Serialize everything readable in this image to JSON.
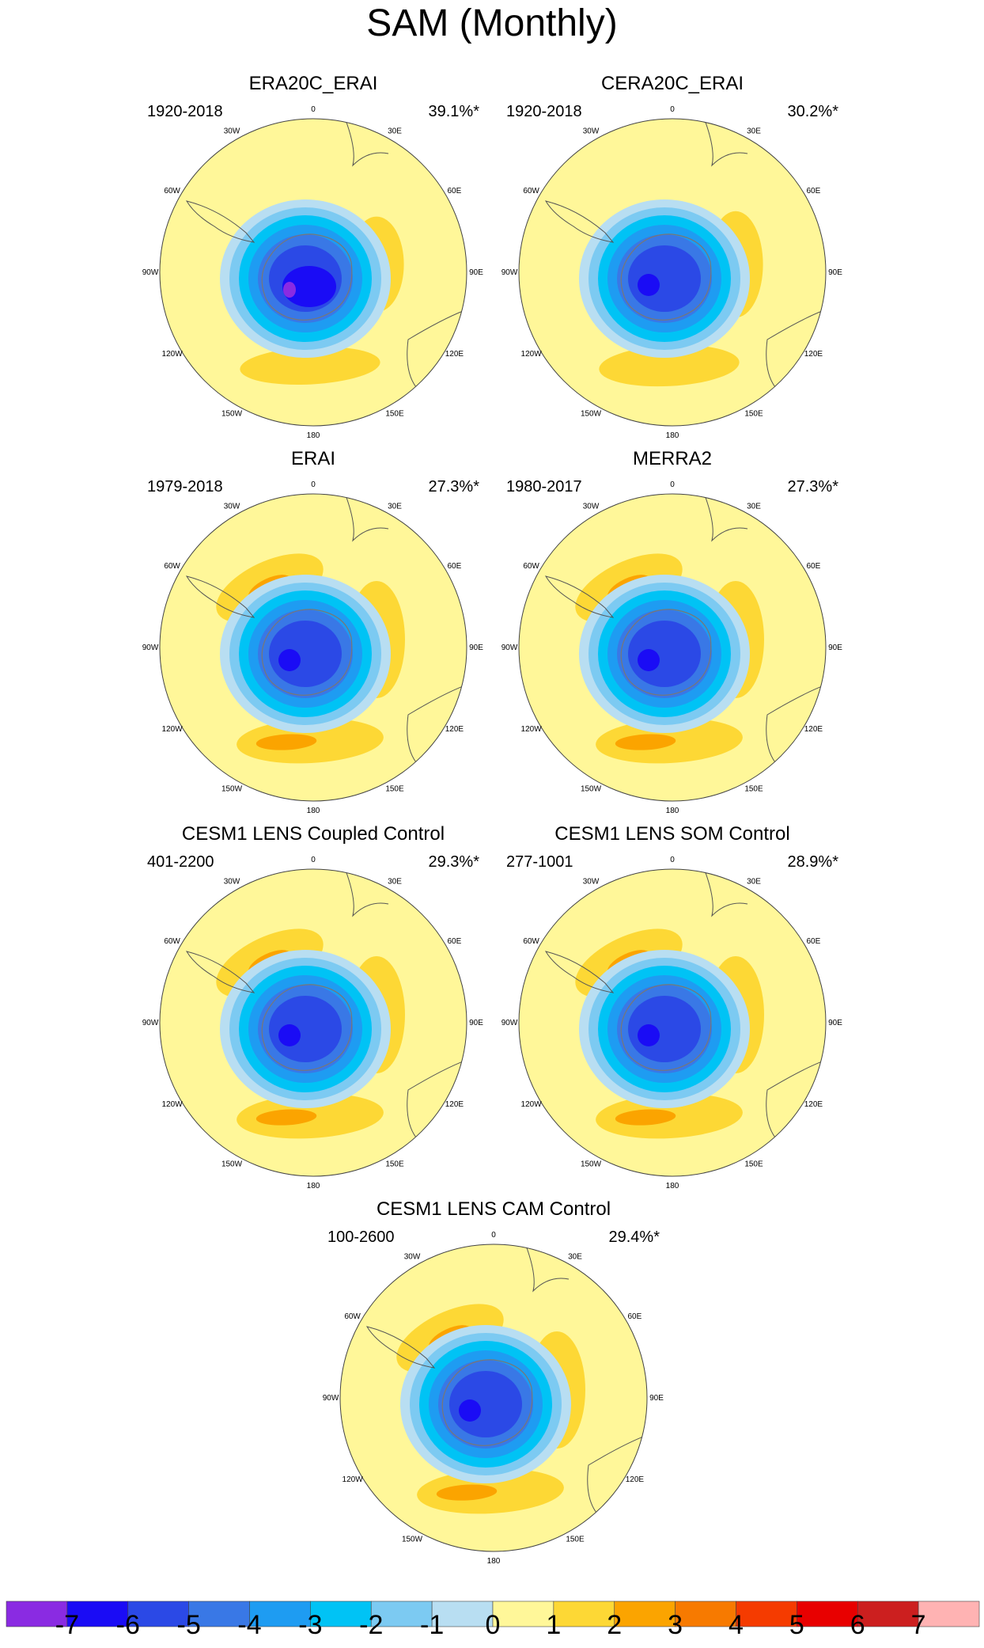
{
  "figure": {
    "title": "SAM (Monthly)"
  },
  "panels": [
    {
      "title": "ERA20C_ERAI",
      "years": "1920-2018",
      "variance": "39.1%*"
    },
    {
      "title": "CERA20C_ERAI",
      "years": "1920-2018",
      "variance": "30.2%*"
    },
    {
      "title": "ERAI",
      "years": "1979-2018",
      "variance": "27.3%*"
    },
    {
      "title": "MERRA2",
      "years": "1980-2017",
      "variance": "27.3%*"
    },
    {
      "title": "CESM1 LENS Coupled Control",
      "years": "401-2200",
      "variance": "29.3%*"
    },
    {
      "title": "CESM1 LENS SOM Control",
      "years": "277-1001",
      "variance": "28.9%*"
    },
    {
      "title": "CESM1 LENS CAM Control",
      "years": "100-2600",
      "variance": "29.4%*"
    }
  ],
  "map_ticks": [
    "0",
    "30E",
    "60E",
    "90E",
    "120E",
    "150E",
    "180",
    "150W",
    "120W",
    "90W",
    "60W",
    "30W"
  ],
  "colorbar": {
    "labels": [
      "-7",
      "-6",
      "-5",
      "-4",
      "-3",
      "-2",
      "-1",
      "0",
      "1",
      "2",
      "3",
      "4",
      "5",
      "6",
      "7"
    ],
    "colors": [
      "#8a2be2",
      "#1a0cf5",
      "#2b49e6",
      "#3978e6",
      "#1e9cf2",
      "#00c3f5",
      "#7ccaf2",
      "#b8def2",
      "#fff799",
      "#fdd835",
      "#fba400",
      "#f77a00",
      "#f53b00",
      "#e80000",
      "#cc1f1f",
      "#ffb3b3"
    ]
  }
}
